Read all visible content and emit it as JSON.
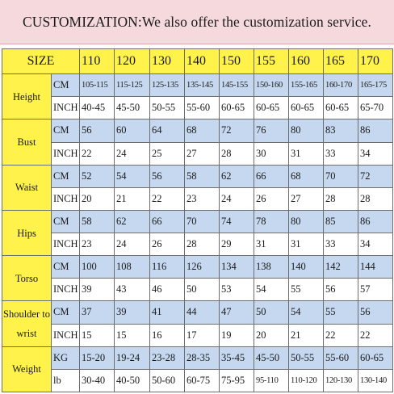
{
  "banner": "CUSTOMIZATION:We also offer the customization service.",
  "size_label": "SIZE",
  "sizes": [
    "110",
    "120",
    "130",
    "140",
    "150",
    "155",
    "160",
    "165",
    "170"
  ],
  "measurements": [
    {
      "name": "Height",
      "rows": [
        {
          "unit": "CM",
          "values": [
            "105-115",
            "115-125",
            "125-135",
            "135-145",
            "145-155",
            "150-160",
            "155-165",
            "160-170",
            "165-175"
          ]
        },
        {
          "unit": "INCH",
          "values": [
            "40-45",
            "45-50",
            "50-55",
            "55-60",
            "60-65",
            "60-65",
            "60-65",
            "60-65",
            "65-70"
          ]
        }
      ]
    },
    {
      "name": "Bust",
      "rows": [
        {
          "unit": "CM",
          "values": [
            "56",
            "60",
            "64",
            "68",
            "72",
            "76",
            "80",
            "83",
            "86"
          ]
        },
        {
          "unit": "INCH",
          "values": [
            "22",
            "24",
            "25",
            "27",
            "28",
            "30",
            "31",
            "33",
            "34"
          ]
        }
      ]
    },
    {
      "name": "Waist",
      "rows": [
        {
          "unit": "CM",
          "values": [
            "52",
            "54",
            "56",
            "58",
            "62",
            "66",
            "68",
            "70",
            "72"
          ]
        },
        {
          "unit": "INCH",
          "values": [
            "20",
            "21",
            "22",
            "23",
            "24",
            "26",
            "27",
            "28",
            "28"
          ]
        }
      ]
    },
    {
      "name": "Hips",
      "rows": [
        {
          "unit": "CM",
          "values": [
            "58",
            "62",
            "66",
            "70",
            "74",
            "78",
            "80",
            "85",
            "86"
          ]
        },
        {
          "unit": "INCH",
          "values": [
            "23",
            "24",
            "26",
            "28",
            "29",
            "31",
            "31",
            "33",
            "34"
          ]
        }
      ]
    },
    {
      "name": "Torso",
      "rows": [
        {
          "unit": "CM",
          "values": [
            "100",
            "108",
            "116",
            "126",
            "134",
            "138",
            "140",
            "142",
            "144"
          ]
        },
        {
          "unit": "INCH",
          "values": [
            "39",
            "43",
            "46",
            "50",
            "53",
            "54",
            "55",
            "56",
            "57"
          ]
        }
      ]
    },
    {
      "name": "Shoulder to wrist",
      "rows": [
        {
          "unit": "CM",
          "values": [
            "37",
            "39",
            "41",
            "44",
            "47",
            "50",
            "54",
            "55",
            "56"
          ]
        },
        {
          "unit": "INCH",
          "values": [
            "15",
            "15",
            "16",
            "17",
            "19",
            "20",
            "21",
            "22",
            "22"
          ]
        }
      ]
    },
    {
      "name": "Weight",
      "rows": [
        {
          "unit": "KG",
          "values": [
            "15-20",
            "19-24",
            "23-28",
            "28-35",
            "35-45",
            "45-50",
            "50-55",
            "55-60",
            "60-65"
          ]
        },
        {
          "unit": "lb",
          "values": [
            "30-40",
            "40-50",
            "50-60",
            "60-75",
            "75-95",
            "95-110",
            "110-120",
            "120-130",
            "130-140"
          ]
        }
      ]
    }
  ]
}
